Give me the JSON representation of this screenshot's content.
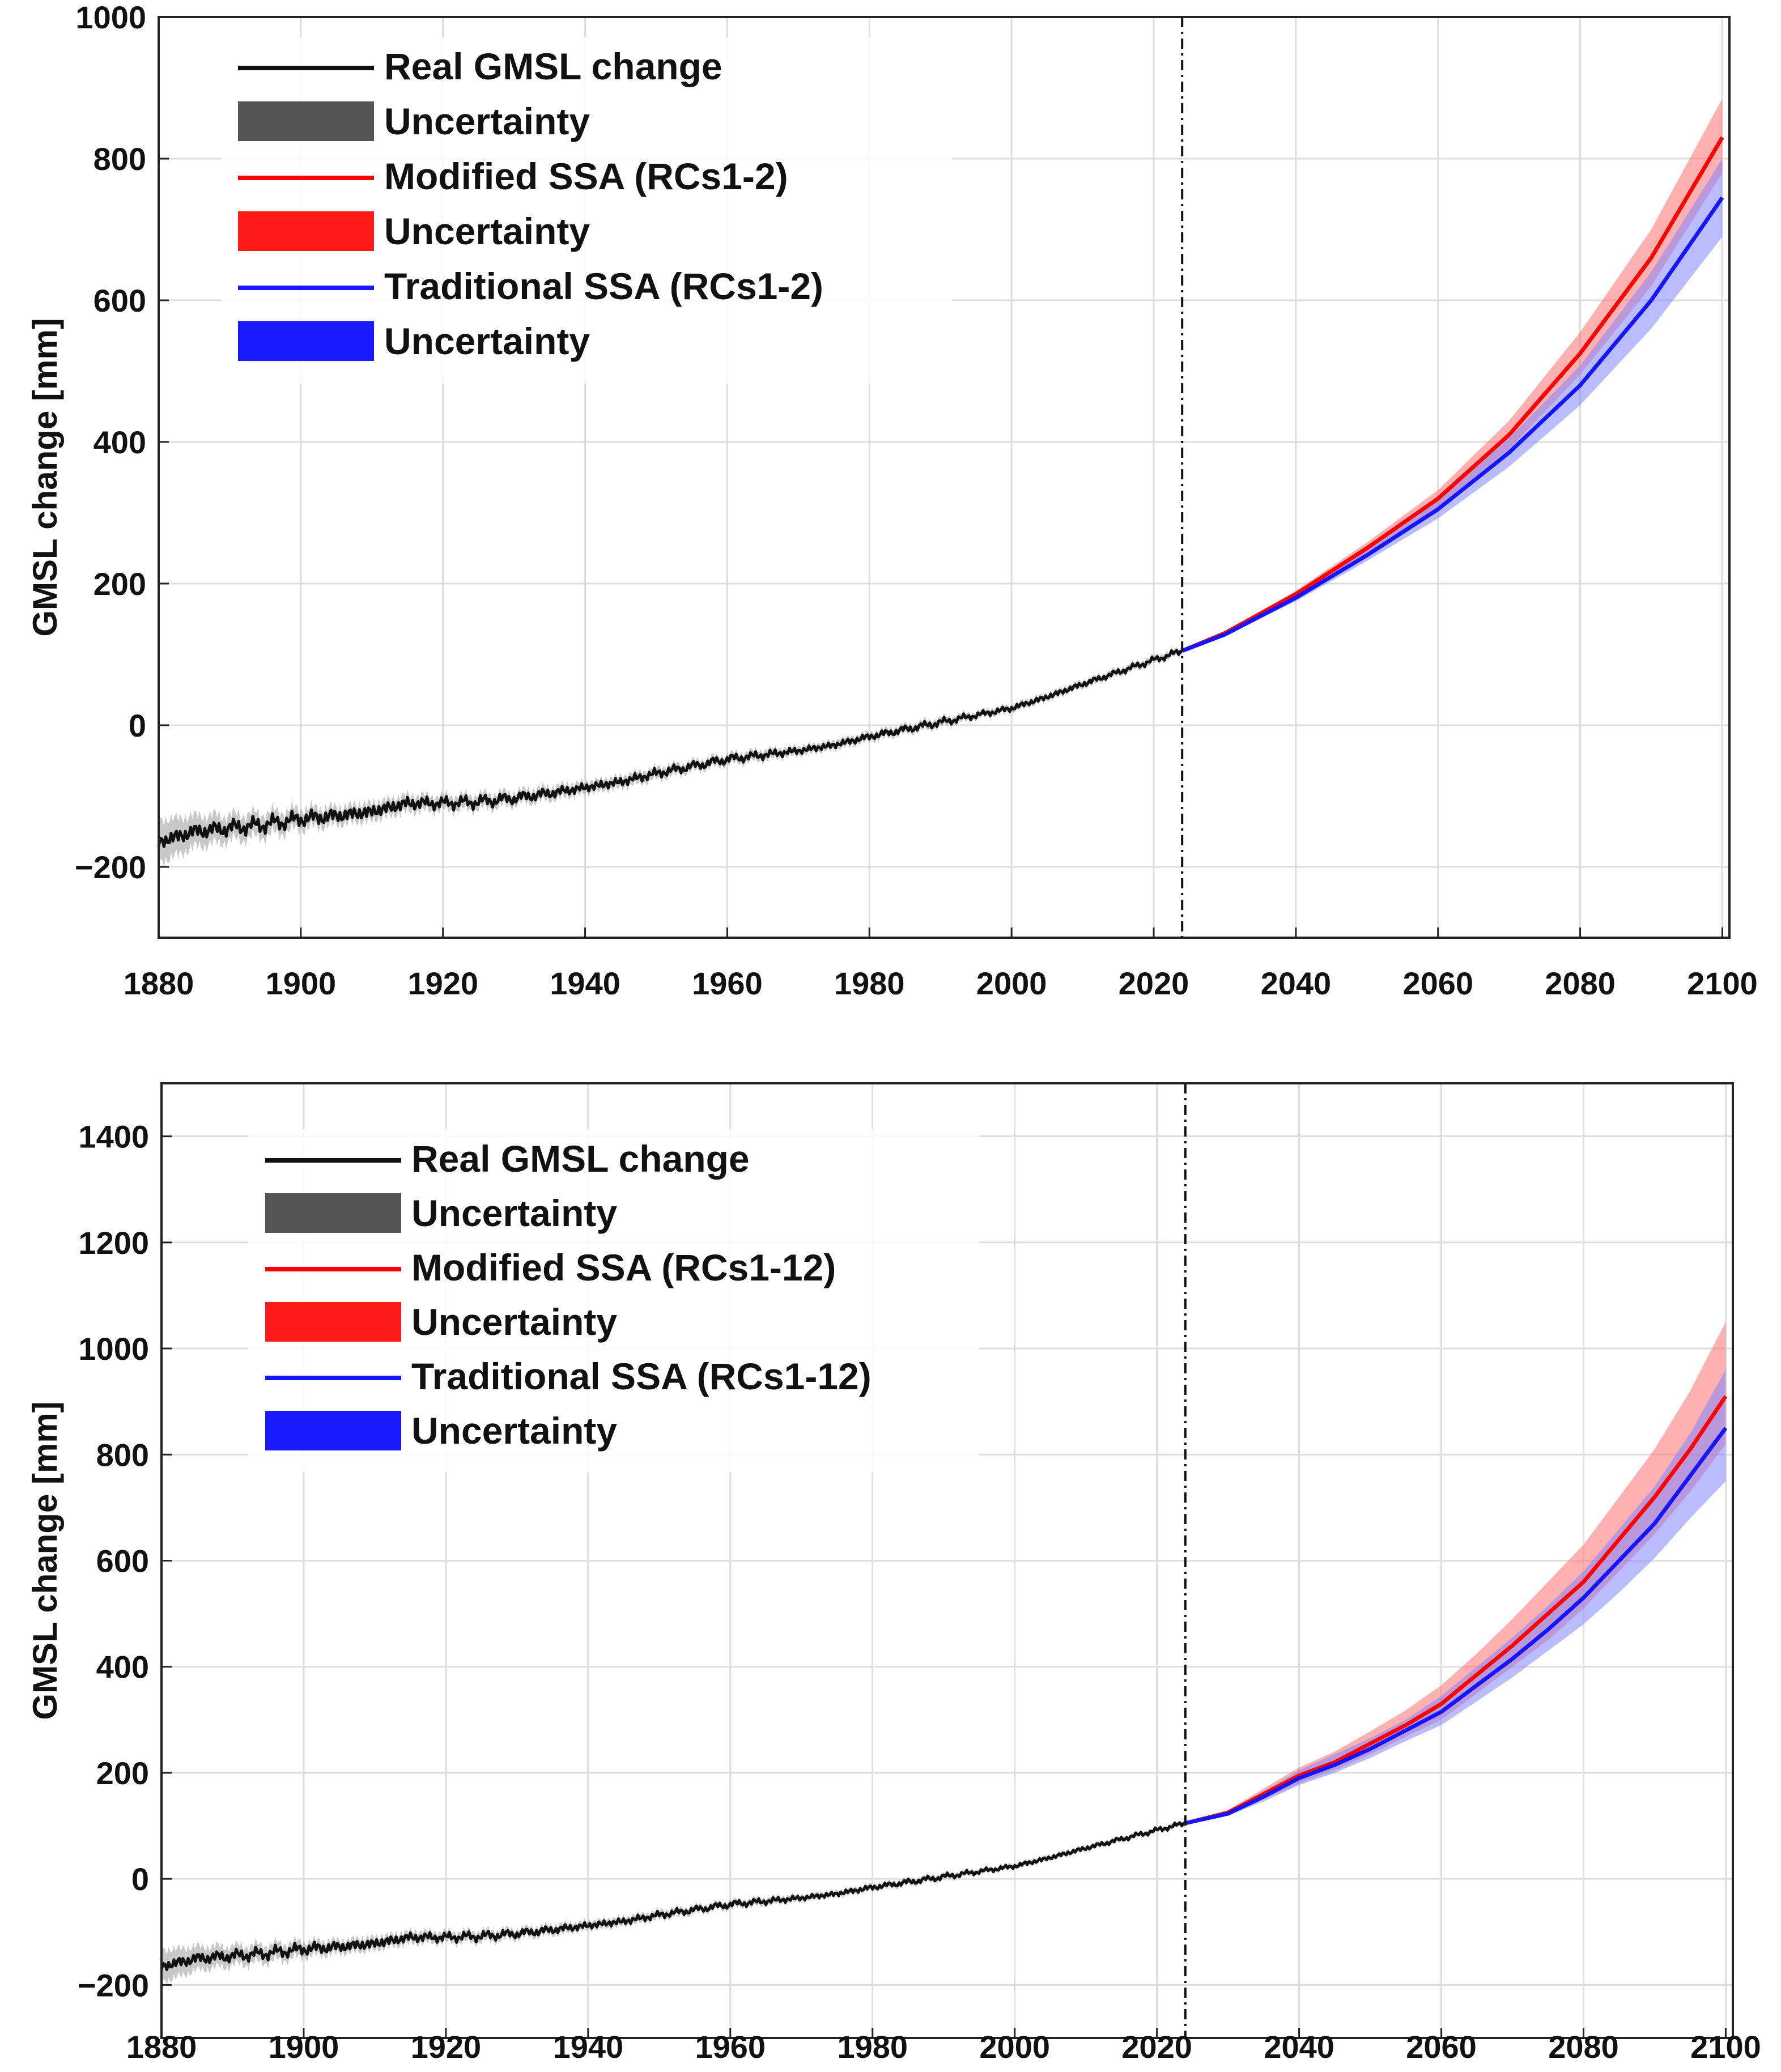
{
  "figure": {
    "colors": {
      "observed": "#111111",
      "observed_band": "#9a9a9a",
      "modified": "#ff0000",
      "modified_band": "#ff7070",
      "traditional": "#1515ff",
      "traditional_band": "#7f86ff",
      "grid": "#dddddd",
      "axis": "#222222"
    }
  },
  "chart_data": [
    {
      "type": "line",
      "title": "",
      "xlabel": "",
      "ylabel": "GMSL change [mm]",
      "xlim": [
        1880,
        2101
      ],
      "ylim": [
        -300,
        1000
      ],
      "x_ticks": [
        1880,
        1900,
        1920,
        1940,
        1960,
        1980,
        2000,
        2020,
        2040,
        2060,
        2080,
        2100
      ],
      "x_tick_labels": [
        "1880",
        "1900",
        "1920",
        "1940",
        "1960",
        "1980",
        "2000",
        "2020",
        "2040",
        "2060",
        "2080",
        "2100"
      ],
      "y_ticks": [
        -200,
        0,
        200,
        400,
        600,
        800,
        1000
      ],
      "y_tick_labels": [
        "−200",
        "0",
        "200",
        "400",
        "600",
        "800",
        "1000"
      ],
      "grid": true,
      "legend_position": "top-left",
      "forecast_start_marker": 2024,
      "legend": [
        {
          "key": "observed",
          "kind": "line",
          "label": "Real GMSL change"
        },
        {
          "key": "observed_band",
          "kind": "patch",
          "label": "Uncertainty"
        },
        {
          "key": "modified",
          "kind": "line",
          "label": "Modified SSA (RCs1-2)"
        },
        {
          "key": "modified_band",
          "kind": "patch",
          "label": "Uncertainty"
        },
        {
          "key": "traditional",
          "kind": "line",
          "label": "Traditional SSA (RCs1-2)"
        },
        {
          "key": "traditional_band",
          "kind": "patch",
          "label": "Uncertainty"
        }
      ],
      "observed": {
        "name": "Real GMSL change",
        "x": [
          1880,
          1885,
          1890,
          1895,
          1900,
          1905,
          1910,
          1915,
          1920,
          1925,
          1930,
          1935,
          1940,
          1945,
          1950,
          1955,
          1960,
          1965,
          1970,
          1975,
          1980,
          1985,
          1990,
          1995,
          2000,
          2005,
          2010,
          2015,
          2020,
          2024
        ],
        "y": [
          -165,
          -150,
          -145,
          -140,
          -132,
          -128,
          -122,
          -110,
          -110,
          -108,
          -103,
          -96,
          -88,
          -80,
          -68,
          -58,
          -48,
          -42,
          -36,
          -28,
          -16,
          -6,
          4,
          14,
          24,
          40,
          58,
          75,
          92,
          105
        ],
        "band_halfwidth": [
          30,
          22,
          18,
          16,
          14,
          12,
          12,
          11,
          10,
          10,
          9,
          9,
          8,
          8,
          8,
          7,
          7,
          7,
          6,
          6,
          6,
          6,
          6,
          5,
          5,
          5,
          5,
          5,
          5,
          5
        ]
      },
      "forecast_x": [
        2024,
        2030,
        2040,
        2050,
        2060,
        2070,
        2080,
        2090,
        2100
      ],
      "series": [
        {
          "name": "Modified SSA (RCs1-2)",
          "key": "modified",
          "values": [
            105,
            130,
            185,
            250,
            320,
            410,
            525,
            660,
            830
          ],
          "lower": [
            105,
            128,
            180,
            242,
            308,
            390,
            495,
            620,
            780
          ],
          "upper": [
            105,
            132,
            190,
            258,
            332,
            430,
            555,
            700,
            885
          ]
        },
        {
          "name": "Traditional SSA (RCs1-2)",
          "key": "traditional",
          "values": [
            105,
            128,
            180,
            240,
            305,
            385,
            480,
            600,
            745
          ],
          "lower": [
            105,
            126,
            175,
            232,
            292,
            365,
            452,
            560,
            690
          ],
          "upper": [
            105,
            130,
            185,
            248,
            318,
            405,
            508,
            640,
            800
          ]
        }
      ]
    },
    {
      "type": "line",
      "title": "",
      "xlabel": "",
      "ylabel": "GMSL change [mm]",
      "xlim": [
        1880,
        2101
      ],
      "ylim": [
        -300,
        1500
      ],
      "x_ticks": [
        1880,
        1900,
        1920,
        1940,
        1960,
        1980,
        2000,
        2020,
        2040,
        2060,
        2080,
        2100
      ],
      "x_tick_labels": [
        "1880",
        "1900",
        "1920",
        "1940",
        "1960",
        "1980",
        "2000",
        "2020",
        "2040",
        "2060",
        "2080",
        "2100"
      ],
      "y_ticks": [
        -200,
        0,
        200,
        400,
        600,
        800,
        1000,
        1200,
        1400
      ],
      "y_tick_labels": [
        "−200",
        "0",
        "200",
        "400",
        "600",
        "800",
        "1000",
        "1200",
        "1400"
      ],
      "grid": true,
      "legend_position": "top-left",
      "forecast_start_marker": 2024,
      "legend": [
        {
          "key": "observed",
          "kind": "line",
          "label": "Real GMSL change"
        },
        {
          "key": "observed_band",
          "kind": "patch",
          "label": "Uncertainty"
        },
        {
          "key": "modified",
          "kind": "line",
          "label": "Modified SSA (RCs1-12)"
        },
        {
          "key": "modified_band",
          "kind": "patch",
          "label": "Uncertainty"
        },
        {
          "key": "traditional",
          "kind": "line",
          "label": "Traditional SSA (RCs1-12)"
        },
        {
          "key": "traditional_band",
          "kind": "patch",
          "label": "Uncertainty"
        }
      ],
      "observed": {
        "name": "Real GMSL change",
        "x": [
          1880,
          1885,
          1890,
          1895,
          1900,
          1905,
          1910,
          1915,
          1920,
          1925,
          1930,
          1935,
          1940,
          1945,
          1950,
          1955,
          1960,
          1965,
          1970,
          1975,
          1980,
          1985,
          1990,
          1995,
          2000,
          2005,
          2010,
          2015,
          2020,
          2024
        ],
        "y": [
          -165,
          -150,
          -145,
          -140,
          -132,
          -128,
          -122,
          -110,
          -110,
          -108,
          -103,
          -96,
          -88,
          -80,
          -68,
          -58,
          -48,
          -42,
          -36,
          -28,
          -16,
          -6,
          4,
          14,
          24,
          40,
          58,
          75,
          92,
          105
        ],
        "band_halfwidth": [
          30,
          22,
          18,
          16,
          14,
          12,
          12,
          11,
          10,
          10,
          9,
          9,
          8,
          8,
          8,
          7,
          7,
          7,
          6,
          6,
          6,
          6,
          6,
          5,
          5,
          5,
          5,
          5,
          5,
          5
        ]
      },
      "forecast_x": [
        2024,
        2030,
        2035,
        2040,
        2045,
        2050,
        2055,
        2060,
        2065,
        2070,
        2075,
        2080,
        2085,
        2090,
        2095,
        2100
      ],
      "series": [
        {
          "name": "Modified SSA (RCs1-12)",
          "key": "modified",
          "values": [
            105,
            125,
            160,
            195,
            220,
            255,
            290,
            330,
            385,
            440,
            500,
            560,
            640,
            720,
            810,
            910
          ],
          "lower": [
            105,
            120,
            150,
            180,
            205,
            235,
            268,
            300,
            350,
            400,
            450,
            510,
            580,
            650,
            730,
            820
          ],
          "upper": [
            105,
            130,
            170,
            210,
            240,
            278,
            318,
            365,
            425,
            490,
            560,
            630,
            720,
            810,
            920,
            1050
          ]
        },
        {
          "name": "Traditional SSA (RCs1-12)",
          "key": "traditional",
          "values": [
            105,
            123,
            155,
            190,
            215,
            245,
            280,
            315,
            365,
            415,
            470,
            530,
            600,
            670,
            760,
            850
          ],
          "lower": [
            105,
            119,
            146,
            177,
            200,
            228,
            260,
            290,
            335,
            380,
            430,
            480,
            540,
            605,
            680,
            750
          ],
          "upper": [
            105,
            128,
            165,
            205,
            235,
            265,
            300,
            345,
            400,
            455,
            515,
            580,
            660,
            740,
            840,
            960
          ]
        }
      ]
    }
  ]
}
